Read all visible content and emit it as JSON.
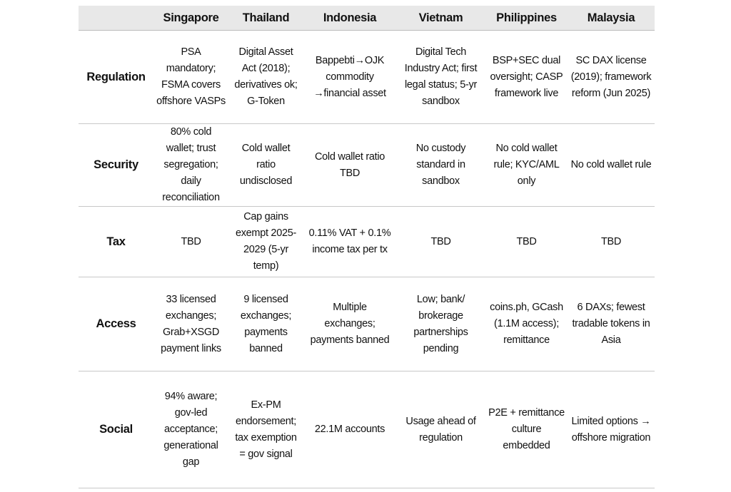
{
  "table": {
    "headers": [
      "",
      "Singapore",
      "Thailand",
      "Indonesia",
      "Vietnam",
      "Philippines",
      "Malaysia"
    ],
    "rows": [
      [
        "Regulation",
        "PSA mandatory; FSMA covers offshore VASPs",
        "Digital Asset Act (2018); derivatives ok; G-Token",
        "Bappebti→OJK commodity →financial asset",
        "Digital Tech Industry Act; first legal status; 5-yr sandbox",
        "BSP+SEC dual oversight; CASP framework live",
        "SC DAX license (2019); framework reform (Jun 2025)"
      ],
      [
        "Security",
        "80% cold wallet; trust segregation; daily reconciliation",
        "Cold wallet ratio undisclosed",
        "Cold wallet ratio TBD",
        "No custody standard in sandbox",
        "No cold wallet rule; KYC/AML only",
        "No cold wallet rule"
      ],
      [
        "Tax",
        "TBD",
        "Cap gains exempt 2025-2029 (5-yr temp)",
        "0.11% VAT + 0.1% income tax per tx",
        "TBD",
        "TBD",
        "TBD"
      ],
      [
        "Access",
        "33 licensed exchanges; Grab+XSGD payment links",
        "9 licensed exchanges; payments banned",
        "Multiple exchanges; payments banned",
        "Low; bank/ brokerage partnerships pending",
        "coins.ph, GCash (1.1M access); remittance",
        "6 DAXs; fewest tradable tokens in Asia"
      ],
      [
        "Social",
        "94% aware; gov-led acceptance; generational gap",
        "Ex-PM endorsement; tax exemption = gov signal",
        "22.1M accounts",
        "Usage ahead of regulation",
        "P2E + remittance culture embedded",
        "Limited options → offshore migration"
      ]
    ]
  }
}
